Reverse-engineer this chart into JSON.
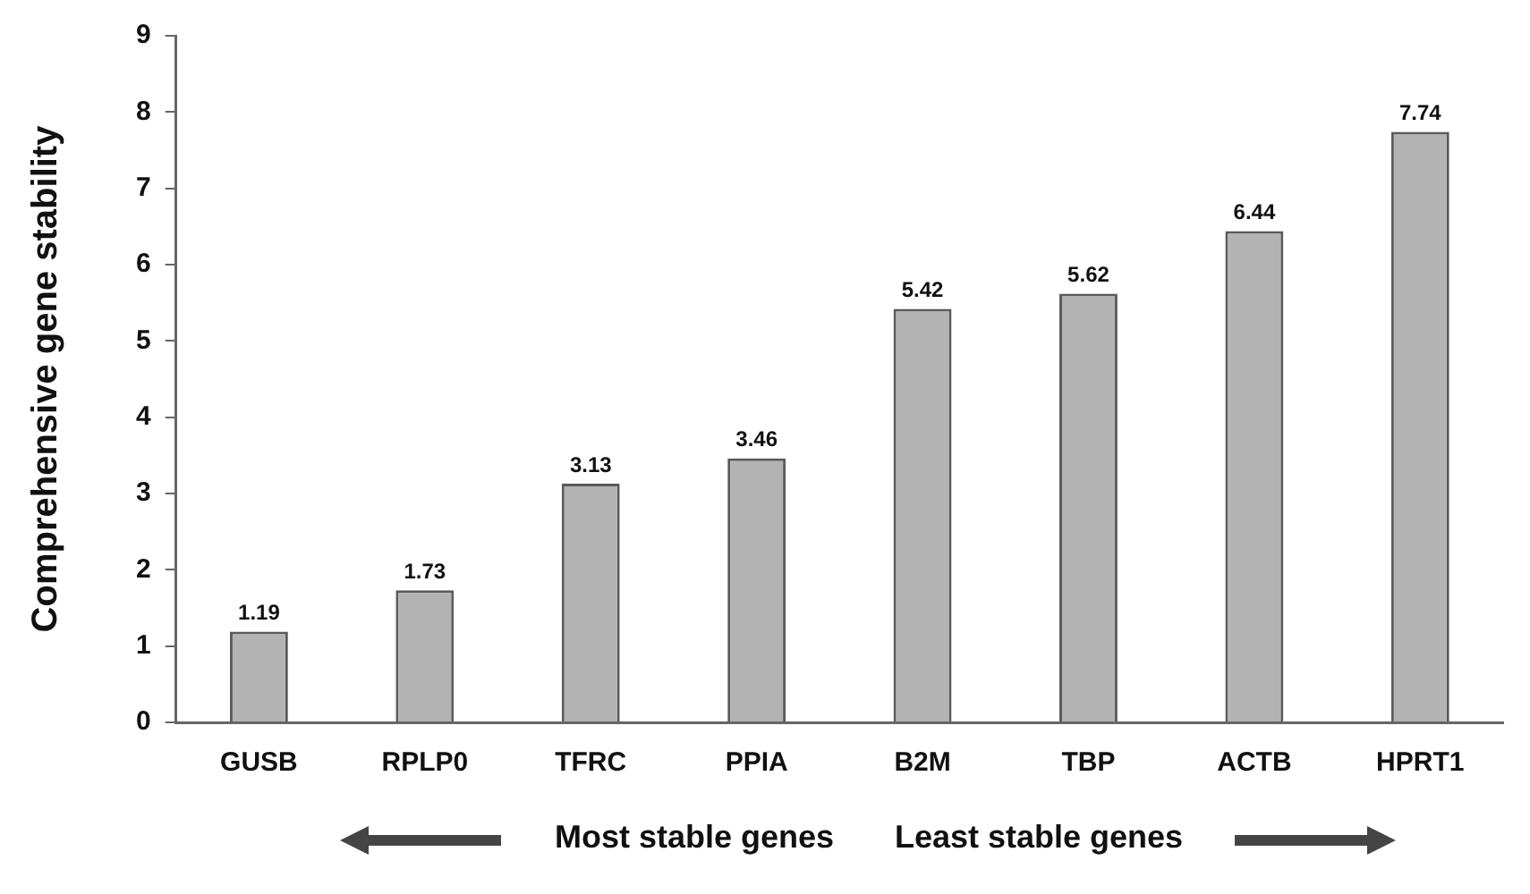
{
  "chart_data": {
    "type": "bar",
    "ylabel": "Comprehensive gene stability",
    "categories": [
      "GUSB",
      "RPLP0",
      "TFRC",
      "PPIA",
      "B2M",
      "TBP",
      "ACTB",
      "HPRT1"
    ],
    "values": [
      1.19,
      1.73,
      3.13,
      3.46,
      5.42,
      5.62,
      6.44,
      7.74
    ],
    "color": "#b3b3b3",
    "ylim": [
      0,
      9
    ],
    "yticks": [
      0,
      1,
      2,
      3,
      4,
      5,
      6,
      7,
      8,
      9
    ],
    "grid": false,
    "legend": false,
    "data_labels": true,
    "annotations": [
      "Most stable genes",
      "Least stable genes"
    ]
  }
}
